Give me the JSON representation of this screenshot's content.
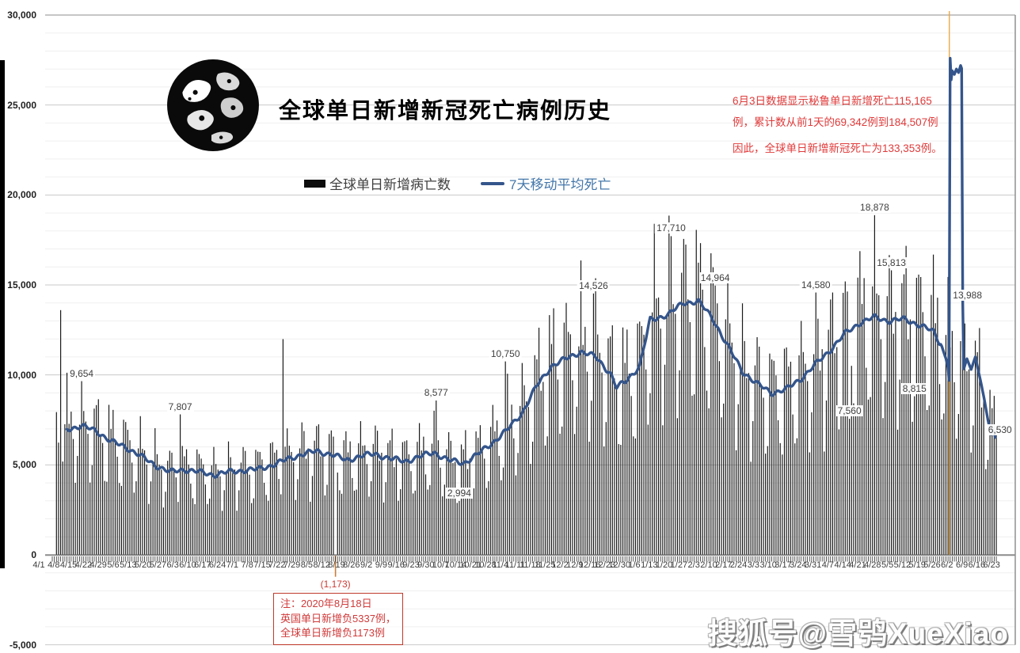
{
  "title": "全球单日新增新冠死亡病例历史",
  "legend": {
    "bars_label": "全球单日新增病亡数",
    "line_label": "7天移动平均死亡"
  },
  "watermark": "搜狐号@雪鸮XueXiao",
  "annotations": {
    "peru_note_lines": [
      "6月3日数据显示秘鲁单日新增死亡115,165",
      "例，累计数从前1天的69,342例到184,507例",
      "因此，全球单日新增新冠死亡为133,353例。"
    ],
    "uk_note_lines": [
      "注：2020年8月18日",
      "英国单日新增负5337例，",
      "全球单日新增负1173例"
    ],
    "negative_bar_label": "(1,173)"
  },
  "colors": {
    "bar": "#1a1a1a",
    "line": "#34558b",
    "legend_line_text": "#4477aa",
    "note_red": "#e03a3a",
    "orange_marker": "#e8a33d",
    "negative_bar": "#c87e3a",
    "grid_minor": "#efefef",
    "grid_major": "#c9c9c9",
    "axis_dark": "#8c8c8c"
  },
  "chart_data": {
    "type": "bar+line",
    "title": "全球单日新增新冠死亡病例历史",
    "y_axis": {
      "min": -5000,
      "max": 30000,
      "major_step": 5000,
      "minor_step": 1000,
      "tick_values": [
        30000,
        25000,
        20000,
        15000,
        10000,
        5000,
        0,
        -5000
      ],
      "tick_labels": [
        "30,000",
        "25,000",
        "20,000",
        "15,000",
        "10,000",
        "5,000",
        "0",
        "-5,000"
      ]
    },
    "x_tick_labels": [
      "4/1",
      "4/8",
      "4/15",
      "4/22",
      "4/29",
      "5/6",
      "5/13",
      "5/20",
      "5/27",
      "6/3",
      "6/10",
      "6/17",
      "6/24",
      "7/1",
      "7/8",
      "7/15",
      "7/22",
      "7/29",
      "8/5",
      "8/12",
      "8/19",
      "8/26",
      "9/2",
      "9/9",
      "9/16",
      "9/23",
      "9/30",
      "10/7",
      "10/14",
      "10/21",
      "10/28",
      "11/4",
      "11/11",
      "11/18",
      "11/25",
      "12/2",
      "12/9",
      "12/16",
      "12/23",
      "12/30",
      "1/6",
      "1/13",
      "1/20",
      "1/27",
      "2/3",
      "2/10",
      "2/17",
      "2/24",
      "3/3",
      "3/10",
      "3/17",
      "3/24",
      "3/31",
      "4/7",
      "4/14",
      "4/21",
      "4/28",
      "5/5",
      "5/12",
      "5/19",
      "5/26",
      "6/2",
      "6/9",
      "6/16",
      "6/23"
    ],
    "series": [
      {
        "name": "全球单日新增病亡数",
        "type": "bar",
        "bar_weekly_avg": [
          7200,
          7000,
          7150,
          6900,
          6300,
          6000,
          5500,
          5000,
          4600,
          4750,
          4600,
          4450,
          4600,
          4700,
          4750,
          5000,
          5300,
          5600,
          5750,
          5600,
          5250,
          5500,
          5600,
          5350,
          5200,
          5450,
          5700,
          5250,
          5100,
          5600,
          6250,
          6950,
          7900,
          9400,
          10500,
          10900,
          11300,
          11000,
          10100,
          9600,
          10500,
          13100,
          13400,
          14000,
          14100,
          13100,
          11600,
          10200,
          9500,
          9000,
          9200,
          9800,
          10600,
          11400,
          12300,
          12900,
          13200,
          13000,
          13100,
          12800,
          12400,
          11000,
          10700,
          9800,
          7000
        ],
        "weekday_pattern": [
          1.28,
          1.18,
          1.05,
          0.92,
          0.6,
          0.7,
          1.15
        ],
        "bar_outliers": [
          {
            "d": 4,
            "v": 13600
          },
          {
            "d": 14,
            "v": 9654,
            "label": "9,654"
          },
          {
            "d": 61,
            "v": 7807,
            "label": "7,807"
          },
          {
            "d": 110,
            "v": 11990
          },
          {
            "d": 135,
            "v": -1173,
            "negative": true
          },
          {
            "d": 183,
            "v": 8577,
            "label": "8,577"
          },
          {
            "d": 194,
            "v": 2994,
            "label": "2,994"
          },
          {
            "d": 216,
            "v": 10750,
            "label": "10,750"
          },
          {
            "d": 258,
            "v": 14526,
            "label": "14,526"
          },
          {
            "d": 295,
            "v": 17710,
            "label": "17,710"
          },
          {
            "d": 316,
            "v": 14964,
            "label": "14,964"
          },
          {
            "d": 364,
            "v": 14580,
            "label": "14,580"
          },
          {
            "d": 380,
            "v": 7560,
            "label": "7,560"
          },
          {
            "d": 392,
            "v": 18878,
            "label": "18,878"
          },
          {
            "d": 400,
            "v": 15813,
            "label": "15,813"
          },
          {
            "d": 411,
            "v": 8815,
            "label": "8,815"
          }
        ]
      },
      {
        "name": "7天移动平均死亡",
        "type": "line",
        "weekly_values": [
          null,
          7000,
          7150,
          6900,
          6300,
          6000,
          5500,
          5000,
          4600,
          4750,
          4600,
          4450,
          4600,
          4700,
          4750,
          5000,
          5300,
          5600,
          5750,
          5600,
          5250,
          5500,
          5600,
          5350,
          5200,
          5450,
          5700,
          5250,
          5100,
          5600,
          6250,
          6950,
          7900,
          9400,
          10500,
          10900,
          11300,
          11000,
          10100,
          9600,
          10500,
          13100,
          13400,
          14000,
          14100,
          13100,
          11600,
          10200,
          9500,
          9000,
          9200,
          9800,
          10600,
          11400,
          12300,
          12900,
          13200,
          13000,
          13100,
          12800,
          12400,
          null,
          null,
          null,
          null
        ],
        "detail_points": [
          {
            "d": 269,
            "v": 9300
          },
          {
            "d": 285,
            "v": 13050
          }
        ],
        "spike_points": [
          {
            "d": 424,
            "v": 11600
          },
          {
            "d": 426,
            "v": 10900
          },
          {
            "d": 427,
            "v": 10400
          },
          {
            "d": 427.5,
            "v": 9700
          },
          {
            "d": 428,
            "v": 27600
          },
          {
            "d": 428.5,
            "v": 26400
          },
          {
            "d": 429,
            "v": 26900
          },
          {
            "d": 430,
            "v": 26700
          },
          {
            "d": 431,
            "v": 27000
          },
          {
            "d": 432,
            "v": 26800
          },
          {
            "d": 433,
            "v": 27200
          },
          {
            "d": 433.6,
            "v": 27000
          },
          {
            "d": 434,
            "v": 13988
          },
          {
            "d": 434.4,
            "v": 10300
          },
          {
            "d": 436,
            "v": 10900
          },
          {
            "d": 438,
            "v": 10300
          },
          {
            "d": 440,
            "v": 11000
          },
          {
            "d": 441.5,
            "v": 10200
          },
          {
            "d": 443,
            "v": 9400
          },
          {
            "d": 444.5,
            "v": 8500
          },
          {
            "d": 446,
            "v": 7500
          },
          {
            "d": 447.5,
            "v": 6700
          },
          {
            "d": 448.6,
            "v": 7000
          },
          {
            "d": 449.5,
            "v": 6530
          }
        ],
        "line_point_labels": [
          {
            "d": 434,
            "v": 13988,
            "label": "13,988"
          },
          {
            "d": 449.5,
            "v": 6530,
            "label": "6,530"
          }
        ]
      }
    ],
    "negative_bar": {
      "d": 135,
      "v": -1173,
      "label": "(1,173)",
      "date": "8/18"
    },
    "marker_line_day": 428,
    "grid": "minor+major",
    "legend_position": "top-center"
  }
}
